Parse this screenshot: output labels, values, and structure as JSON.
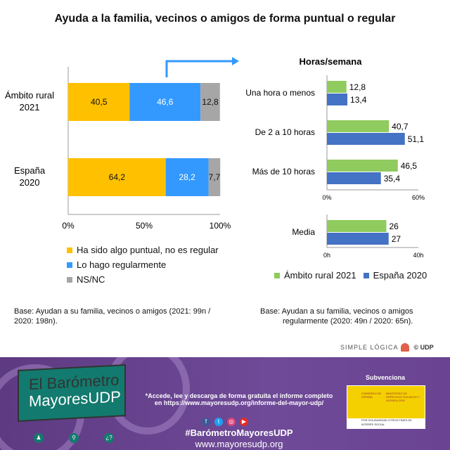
{
  "title": "Ayuda a la familia, vecinos o amigos de forma puntual o regular",
  "chart_data": [
    {
      "type": "bar",
      "orientation": "horizontal-stacked",
      "categories": [
        "Ámbito rural 2021",
        "España 2020"
      ],
      "category_lines": [
        [
          "Ámbito rural",
          "2021"
        ],
        [
          "España",
          "2020"
        ]
      ],
      "series": [
        {
          "name": "Ha sido algo puntual, no es regular",
          "values": [
            40.5,
            64.2
          ],
          "labels": [
            "40,5",
            "64,2"
          ],
          "color": "#FFC000"
        },
        {
          "name": "Lo hago regularmente",
          "values": [
            46.6,
            28.2
          ],
          "labels": [
            "46,6",
            "28,2"
          ],
          "color": "#3399FF"
        },
        {
          "name": "NS/NC",
          "values": [
            12.8,
            7.7
          ],
          "labels": [
            "12,8",
            "7,7"
          ],
          "color": "#A6A6A6"
        }
      ],
      "xlim": [
        0,
        100
      ],
      "xticks": [
        "0%",
        "50%",
        "100%"
      ],
      "legend": "bottom"
    },
    {
      "type": "bar",
      "orientation": "horizontal-grouped",
      "title": "Horas/semana",
      "categories": [
        "Una hora o menos",
        "De 2 a 10 horas",
        "Más de 10 horas"
      ],
      "series": [
        {
          "name": "Ámbito rural 2021",
          "values": [
            12.8,
            40.7,
            46.5
          ],
          "labels": [
            "12,8",
            "40,7",
            "46,5"
          ],
          "color": "#8FCB5E"
        },
        {
          "name": "España 2020",
          "values": [
            13.4,
            51.1,
            35.4
          ],
          "labels": [
            "13,4",
            "51,1",
            "35,4"
          ],
          "color": "#4472C4"
        }
      ],
      "xlim": [
        0,
        60
      ],
      "xticks": [
        "0%",
        "60%"
      ]
    },
    {
      "type": "bar",
      "orientation": "horizontal-grouped",
      "categories": [
        "Media"
      ],
      "series": [
        {
          "name": "Ámbito rural 2021",
          "values": [
            26
          ],
          "labels": [
            "26"
          ],
          "color": "#8FCB5E"
        },
        {
          "name": "España 2020",
          "values": [
            27
          ],
          "labels": [
            "27"
          ],
          "color": "#4472C4"
        }
      ],
      "xlim": [
        0,
        40
      ],
      "xticks": [
        "0h",
        "40h"
      ],
      "legend": "bottom"
    }
  ],
  "base_left": [
    "Base: Ayudan a su familia, vecinos o amigos (2021: 99n /",
    "2020: 198n)."
  ],
  "base_right": [
    "Base: Ayudan a su familia, vecinos o amigos",
    "regularmente (2020: 49n / 2020: 65n)."
  ],
  "credit": {
    "brand": "SIMPLE LÓGICA",
    "copyright": "© UDP"
  },
  "footer": {
    "logo_line1": "El Barómetro",
    "logo_line2": "MayoresUDP",
    "promo_line1": "*Accede, lee y descarga de forma gratuita el informe completo",
    "promo_line2": "en https://www.mayoresudp.org/informe-del-mayor-udp/",
    "hashtag": "#BarómetroMayoresUDP",
    "website": "www.mayoresudp.org",
    "subvenciona": "Subvenciona",
    "gov_left": "GOBIERNO DE ESPAÑA",
    "gov_right": "MINISTERIO DE DERECHOS SOCIALES Y AGENDA 2030",
    "gov_bottom": "POR SOLIDARIDAD OTROS FINES DE INTERÉS SOCIAL",
    "social_icons": [
      "facebook-icon",
      "twitter-icon",
      "instagram-icon",
      "youtube-icon"
    ]
  }
}
